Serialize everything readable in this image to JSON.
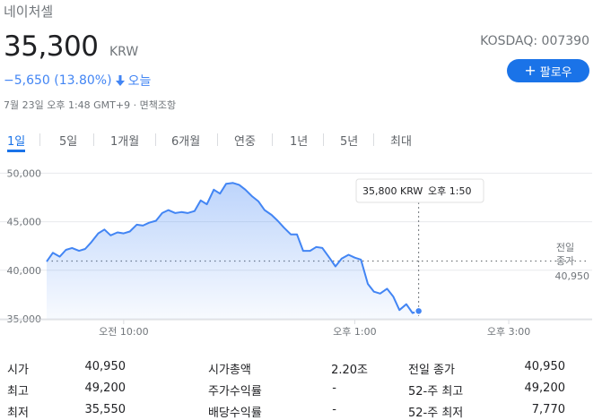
{
  "header": {
    "company": "네이처셀",
    "price": "35,300",
    "currency": "KRW",
    "ticker": "KOSDAQ: 007390",
    "follow_label": "팔로우",
    "change": "−5,650 (13.80%)",
    "change_period": "오늘",
    "timestamp": "7월 23일 오후 1:48 GMT+9 · 면책조항"
  },
  "tabs": [
    "1일",
    "5일",
    "1개월",
    "6개월",
    "연중",
    "1년",
    "5년",
    "최대"
  ],
  "active_tab": "1일",
  "tooltip": {
    "price": "35,800 KRW",
    "time": "오후 1:50"
  },
  "prev_close": {
    "label_line1": "전일",
    "label_line2": "종가",
    "value": "40,950"
  },
  "colors": {
    "accent": "#1a73e8",
    "line": "#4285f4",
    "fill": "#d2e3fc"
  },
  "chart_data": {
    "type": "area",
    "y_ticks": [
      "50,000",
      "45,000",
      "40,000",
      "35,000"
    ],
    "y_tick_values": [
      50000,
      45000,
      40000,
      35000
    ],
    "ylim": [
      35000,
      50500
    ],
    "x_tick_labels": [
      "오전 10:00",
      "오후 1:00",
      "오후 3:00"
    ],
    "x_tick_values": [
      10.0,
      13.0,
      15.0
    ],
    "xlim": [
      9.0,
      15.5
    ],
    "prev_close": 40950,
    "series": [
      {
        "x": [
          9.0,
          9.08,
          9.17,
          9.25,
          9.33,
          9.42,
          9.5,
          9.58,
          9.67,
          9.75,
          9.83,
          9.92,
          10.0,
          10.08,
          10.17,
          10.25,
          10.33,
          10.42,
          10.5,
          10.58,
          10.67,
          10.75,
          10.83,
          10.92,
          11.0,
          11.08,
          11.17,
          11.25,
          11.33,
          11.42,
          11.5,
          11.58,
          11.67,
          11.75,
          11.83,
          11.92,
          12.0,
          12.08,
          12.17,
          12.25,
          12.33,
          12.42,
          12.5,
          12.58,
          12.67,
          12.75,
          12.83,
          12.92,
          13.0,
          13.08,
          13.17,
          13.25,
          13.33,
          13.42,
          13.5,
          13.58,
          13.67,
          13.75,
          13.83
        ],
        "y": [
          40900,
          41800,
          41400,
          42100,
          42300,
          42000,
          42200,
          42900,
          43800,
          44200,
          43600,
          43900,
          43800,
          44000,
          44700,
          44600,
          44900,
          45100,
          45900,
          46200,
          45900,
          46000,
          45900,
          46100,
          47200,
          46800,
          48300,
          47900,
          48900,
          49000,
          48800,
          48300,
          47600,
          47100,
          46200,
          45700,
          45100,
          44400,
          43700,
          43700,
          42000,
          42000,
          42400,
          42300,
          41300,
          40400,
          41200,
          41600,
          41300,
          41100,
          38600,
          37800,
          37600,
          38100,
          37300,
          35900,
          36500,
          35600,
          35800
        ]
      }
    ]
  }
}
